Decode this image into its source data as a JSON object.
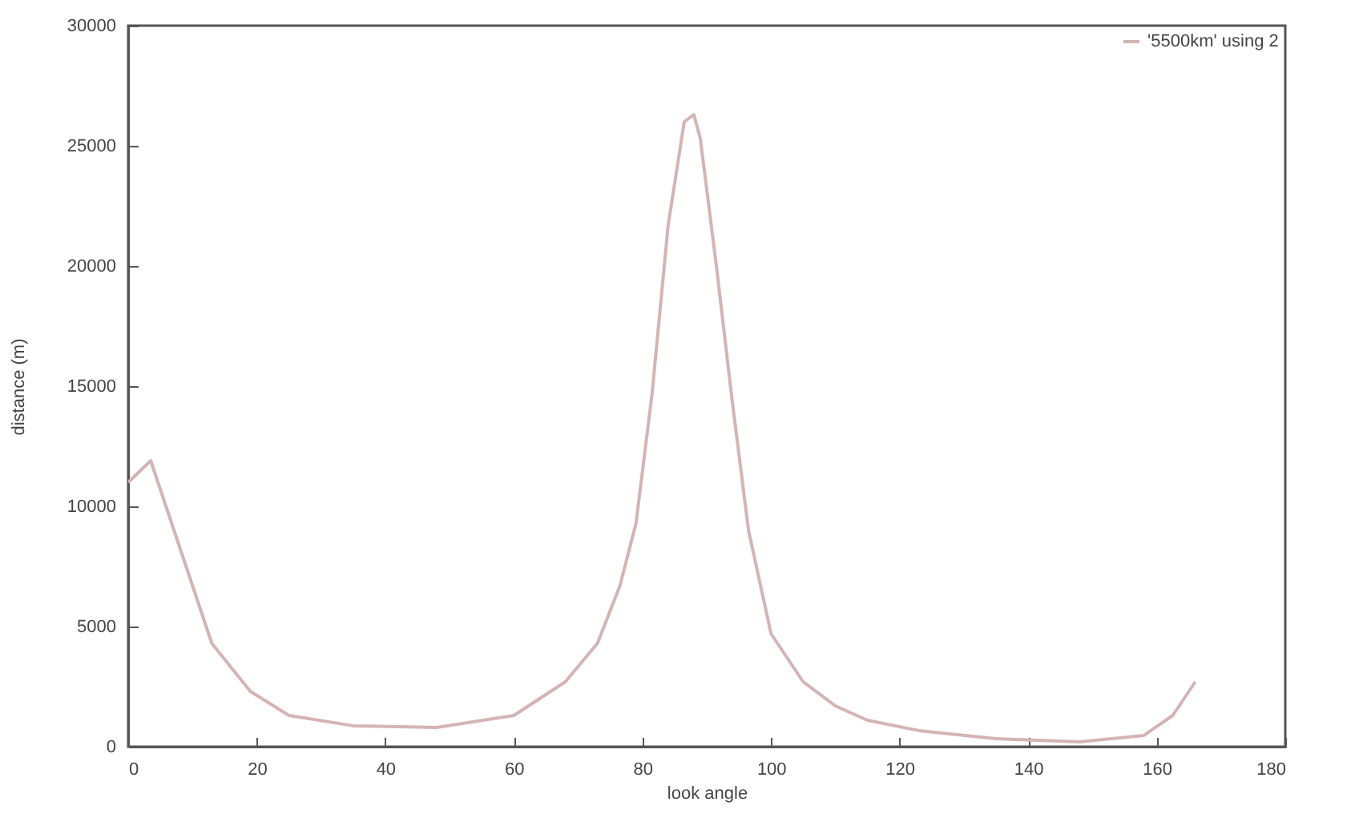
{
  "chart_data": {
    "type": "line",
    "xlabel": "look angle",
    "ylabel": "distance (m)",
    "x": [
      0,
      3.5,
      8,
      13,
      19,
      25,
      35,
      48,
      60,
      68,
      73,
      76.5,
      79,
      81.5,
      84,
      86.5,
      88,
      89,
      91.5,
      94,
      96.5,
      100,
      105,
      110,
      115,
      123,
      135,
      148,
      158,
      162.5,
      166
    ],
    "series": [
      {
        "name": "'5500km' using 2",
        "color": "#d4b4b4",
        "values": [
          11000,
          11900,
          8300,
          4300,
          2300,
          1300,
          870,
          800,
          1300,
          2700,
          4300,
          6700,
          9300,
          14700,
          21700,
          26000,
          26300,
          25300,
          20000,
          14300,
          9000,
          4700,
          2700,
          1700,
          1100,
          670,
          330,
          200,
          470,
          1300,
          2700
        ]
      }
    ],
    "xlim": [
      0,
      180
    ],
    "xticks": [
      0,
      20,
      40,
      60,
      80,
      100,
      120,
      140,
      160,
      180
    ],
    "ylim": [
      0,
      30000
    ],
    "yticks": [
      0,
      5000,
      10000,
      15000,
      20000,
      25000,
      30000
    ],
    "legend": "top right",
    "grid": false
  }
}
